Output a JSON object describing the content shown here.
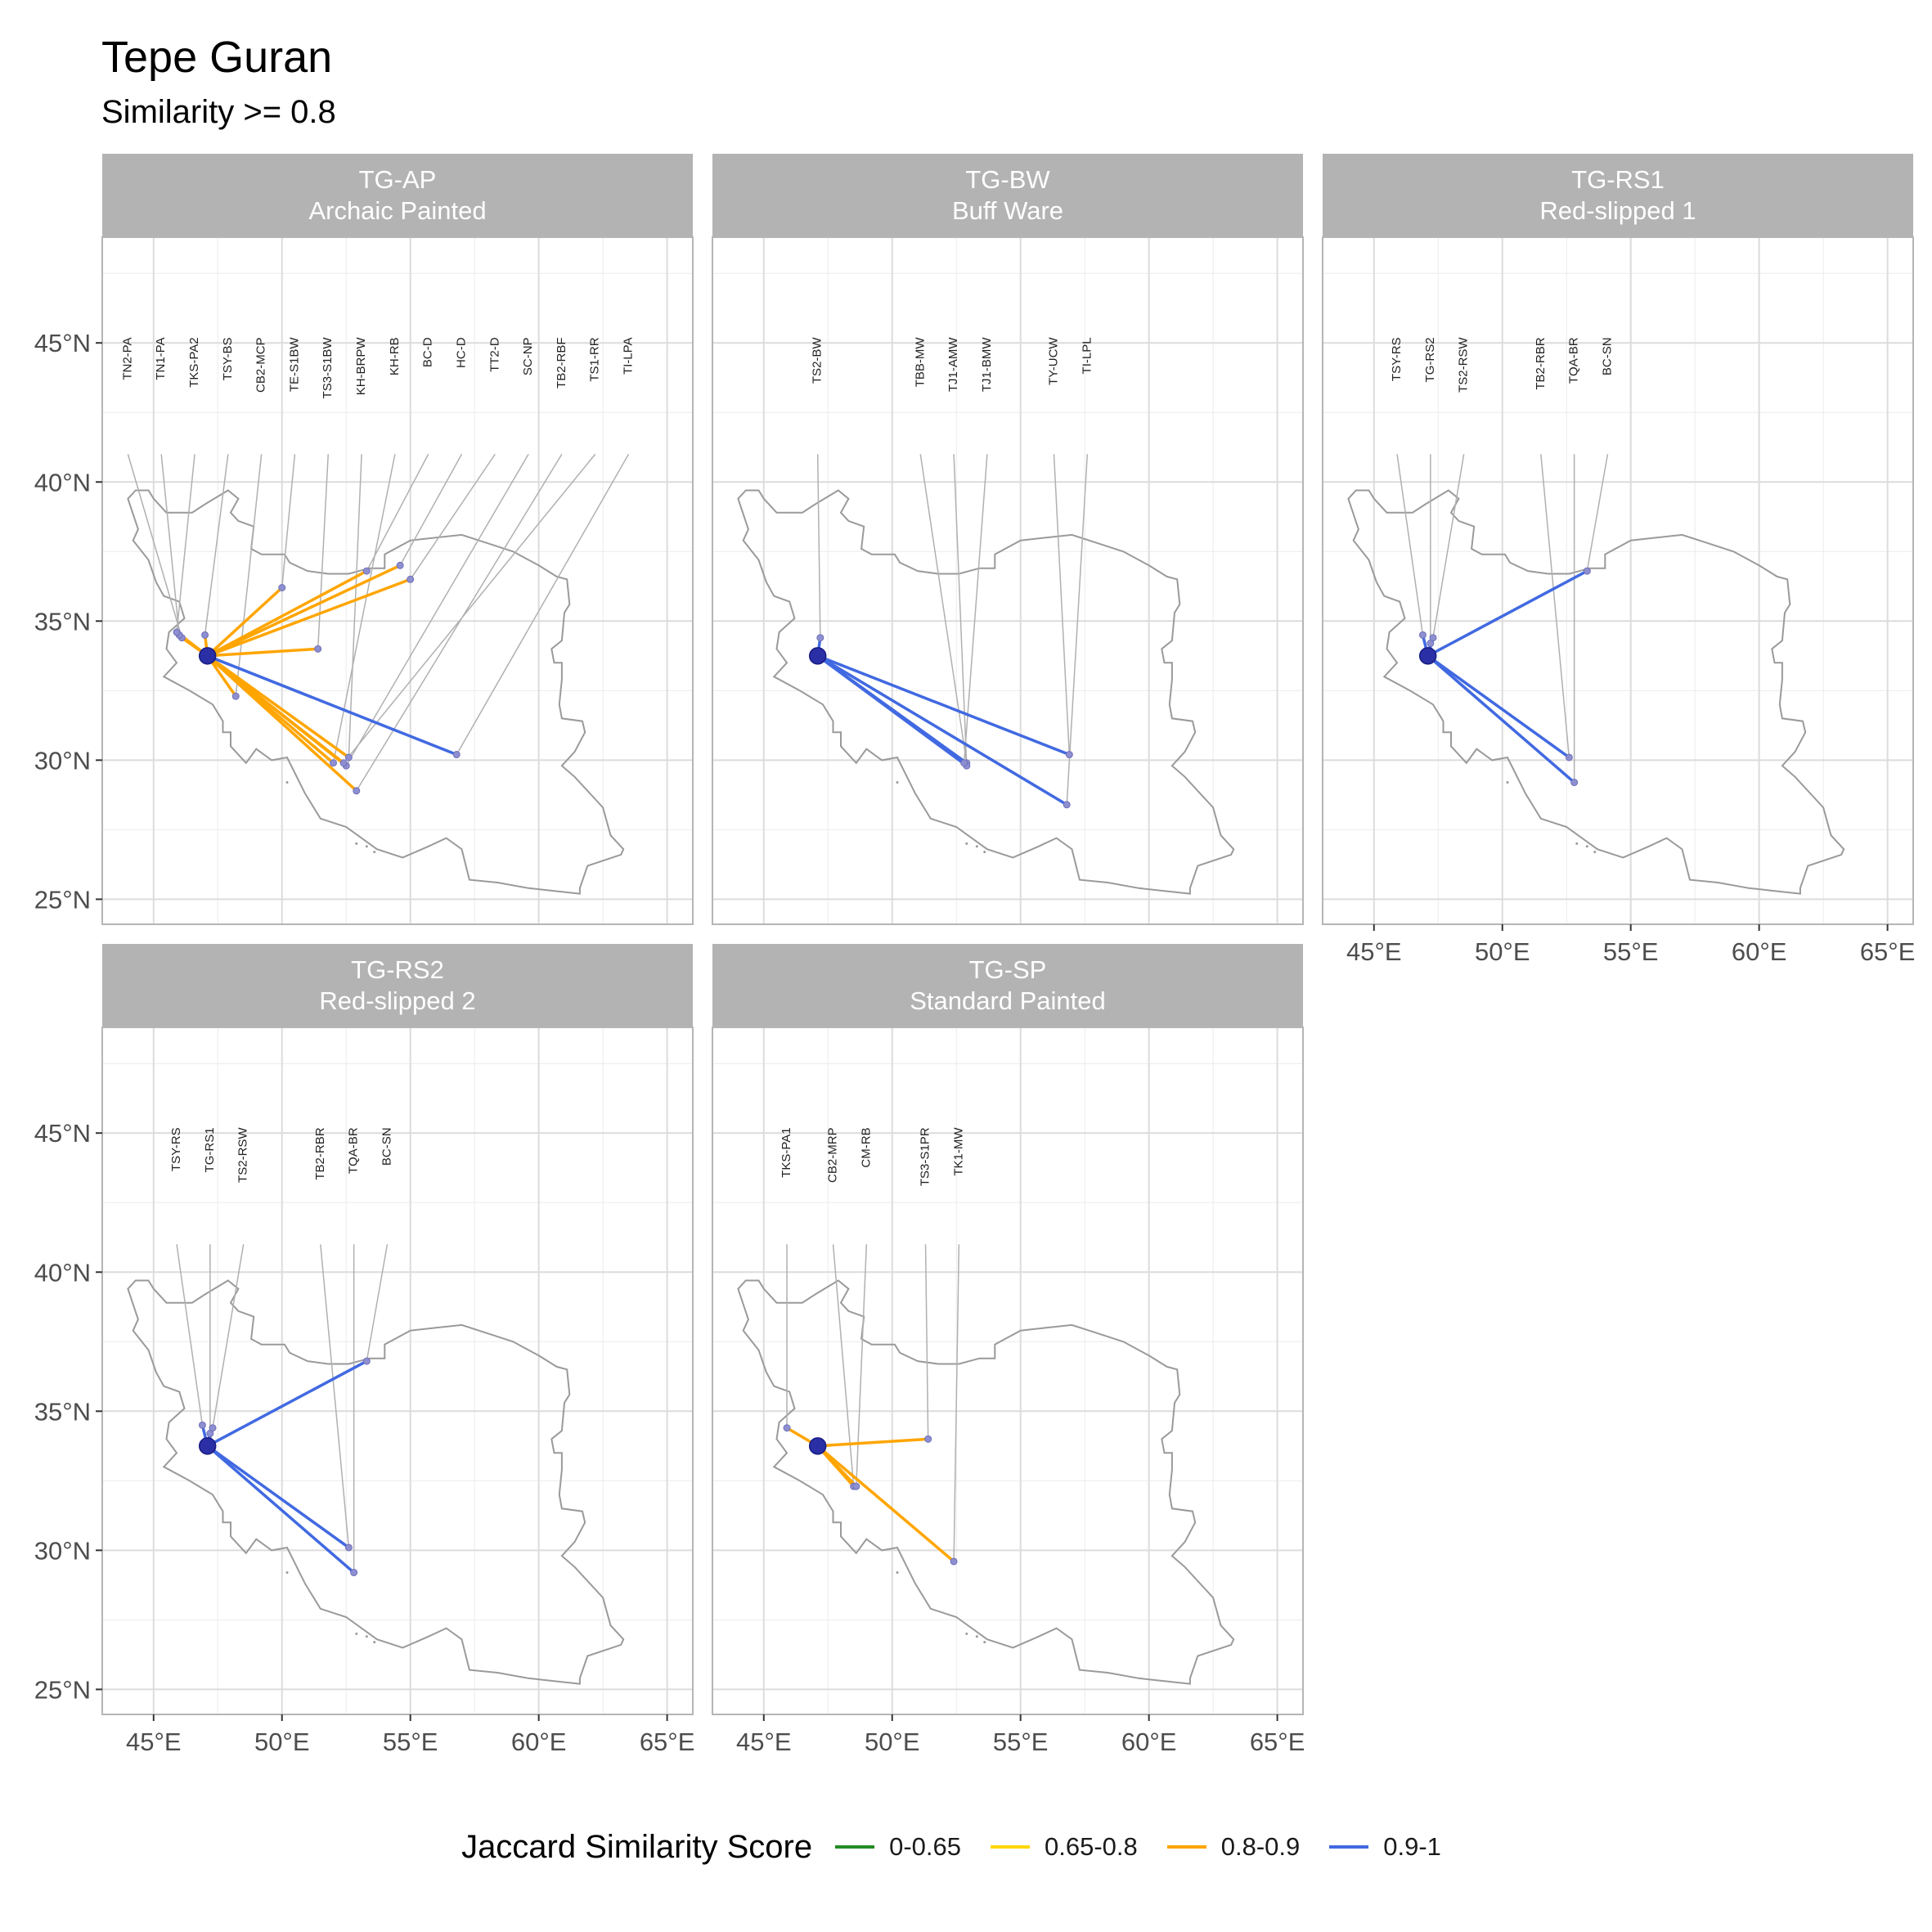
{
  "chart_data": {
    "type": "map",
    "title": "Tepe Guran",
    "subtitle": "Similarity >= 0.8",
    "x_ticks": [
      "45°E",
      "50°E",
      "55°E",
      "60°E",
      "65°E"
    ],
    "y_ticks": [
      "25°N",
      "30°N",
      "35°N",
      "40°N",
      "45°N"
    ],
    "xlim": [
      43.0,
      66.0
    ],
    "ylim": [
      24.1,
      48.8
    ],
    "origin": {
      "name": "Tepe Guran",
      "lon": 47.1,
      "lat": 33.75
    },
    "legend": {
      "title": "Jaccard Similarity Score",
      "placement": "bottom",
      "items": [
        {
          "label": "0-0.65",
          "color": "#228B22"
        },
        {
          "label": "0.65-0.8",
          "color": "#FFD700"
        },
        {
          "label": "0.8-0.9",
          "color": "#FFA500"
        },
        {
          "label": "0.9-1",
          "color": "#4169E1"
        }
      ]
    },
    "panels": [
      {
        "id": "TG-AP",
        "subtitle": "Archaic Painted",
        "sites": [
          {
            "label": "TN2-PA",
            "label_lon": 44.0,
            "lon": 46.1,
            "lat": 34.4,
            "score": "0.8-0.9"
          },
          {
            "label": "TN1-PA",
            "label_lon": 45.3,
            "lon": 46.0,
            "lat": 34.5,
            "score": "0.8-0.9"
          },
          {
            "label": "TKS-PA2",
            "label_lon": 46.6,
            "lon": 45.9,
            "lat": 34.6,
            "score": "0.8-0.9"
          },
          {
            "label": "TSY-BS",
            "label_lon": 47.9,
            "lon": 47.0,
            "lat": 34.5,
            "score": "0.8-0.9"
          },
          {
            "label": "CB2-MCP",
            "label_lon": 49.2,
            "lon": 48.2,
            "lat": 32.3,
            "score": "0.8-0.9"
          },
          {
            "label": "TE-S1BW",
            "label_lon": 50.5,
            "lon": 50.0,
            "lat": 36.2,
            "score": "0.8-0.9"
          },
          {
            "label": "TS3-S1BW",
            "label_lon": 51.8,
            "lon": 51.4,
            "lat": 34.0,
            "score": "0.8-0.9"
          },
          {
            "label": "KH-BRPW",
            "label_lon": 53.1,
            "lon": 52.6,
            "lat": 30.1,
            "score": "0.8-0.9"
          },
          {
            "label": "KH-RB",
            "label_lon": 54.4,
            "lon": 52.0,
            "lat": 29.9,
            "score": "0.8-0.9"
          },
          {
            "label": "BC-D",
            "label_lon": 55.7,
            "lon": 53.3,
            "lat": 36.8,
            "score": "0.8-0.9"
          },
          {
            "label": "HC-D",
            "label_lon": 57.0,
            "lon": 54.6,
            "lat": 37.0,
            "score": "0.8-0.9"
          },
          {
            "label": "TT2-D",
            "label_lon": 58.3,
            "lon": 55.0,
            "lat": 36.5,
            "score": "0.8-0.9"
          },
          {
            "label": "SC-NP",
            "label_lon": 59.6,
            "lon": 52.5,
            "lat": 29.8,
            "score": "0.8-0.9"
          },
          {
            "label": "TB2-RBF",
            "label_lon": 60.9,
            "lon": 52.9,
            "lat": 28.9,
            "score": "0.8-0.9"
          },
          {
            "label": "TS1-RR",
            "label_lon": 62.2,
            "lon": 52.4,
            "lat": 29.9,
            "score": "0.8-0.9"
          },
          {
            "label": "TI-LPA",
            "label_lon": 63.5,
            "lon": 56.8,
            "lat": 30.2,
            "score": "0.9-1"
          }
        ]
      },
      {
        "id": "TG-BW",
        "subtitle": "Buff Ware",
        "sites": [
          {
            "label": "TS2-BW",
            "label_lon": 47.1,
            "lon": 47.2,
            "lat": 34.4,
            "score": "0.9-1"
          },
          {
            "label": "TBB-MW",
            "label_lon": 51.1,
            "lon": 52.9,
            "lat": 29.9,
            "score": "0.9-1"
          },
          {
            "label": "TJ1-AMW",
            "label_lon": 52.4,
            "lon": 52.9,
            "lat": 29.8,
            "score": "0.9-1"
          },
          {
            "label": "TJ1-BMW",
            "label_lon": 53.7,
            "lon": 52.8,
            "lat": 29.9,
            "score": "0.9-1"
          },
          {
            "label": "TY-UCW",
            "label_lon": 56.3,
            "lon": 56.9,
            "lat": 30.2,
            "score": "0.9-1"
          },
          {
            "label": "TI-LPL",
            "label_lon": 57.6,
            "lon": 56.8,
            "lat": 28.4,
            "score": "0.9-1"
          }
        ]
      },
      {
        "id": "TG-RS1",
        "subtitle": "Red-slipped 1",
        "sites": [
          {
            "label": "TSY-RS",
            "label_lon": 45.9,
            "lon": 46.9,
            "lat": 34.5,
            "score": "0.9-1"
          },
          {
            "label": "TG-RS2",
            "label_lon": 47.2,
            "lon": 47.2,
            "lat": 34.2,
            "score": "0.9-1"
          },
          {
            "label": "TS2-RSW",
            "label_lon": 48.5,
            "lon": 47.3,
            "lat": 34.4,
            "score": "0.9-1"
          },
          {
            "label": "TB2-RBR",
            "label_lon": 51.5,
            "lon": 52.6,
            "lat": 30.1,
            "score": "0.9-1"
          },
          {
            "label": "TQA-BR",
            "label_lon": 52.8,
            "lon": 52.8,
            "lat": 29.2,
            "score": "0.9-1"
          },
          {
            "label": "BC-SN",
            "label_lon": 54.1,
            "lon": 53.3,
            "lat": 36.8,
            "score": "0.9-1"
          }
        ]
      },
      {
        "id": "TG-RS2",
        "subtitle": "Red-slipped 2",
        "sites": [
          {
            "label": "TSY-RS",
            "label_lon": 45.9,
            "lon": 46.9,
            "lat": 34.5,
            "score": "0.9-1"
          },
          {
            "label": "TG-RS1",
            "label_lon": 47.2,
            "lon": 47.2,
            "lat": 34.2,
            "score": "0.9-1"
          },
          {
            "label": "TS2-RSW",
            "label_lon": 48.5,
            "lon": 47.3,
            "lat": 34.4,
            "score": "0.9-1"
          },
          {
            "label": "TB2-RBR",
            "label_lon": 51.5,
            "lon": 52.6,
            "lat": 30.1,
            "score": "0.9-1"
          },
          {
            "label": "TQA-BR",
            "label_lon": 52.8,
            "lon": 52.8,
            "lat": 29.2,
            "score": "0.9-1"
          },
          {
            "label": "BC-SN",
            "label_lon": 54.1,
            "lon": 53.3,
            "lat": 36.8,
            "score": "0.9-1"
          }
        ]
      },
      {
        "id": "TG-SP",
        "subtitle": "Standard Painted",
        "sites": [
          {
            "label": "TKS-PA1",
            "label_lon": 45.9,
            "lon": 45.9,
            "lat": 34.4,
            "score": "0.8-0.9"
          },
          {
            "label": "CB2-MRP",
            "label_lon": 47.7,
            "lon": 48.5,
            "lat": 32.3,
            "score": "0.8-0.9"
          },
          {
            "label": "CM-RB",
            "label_lon": 49.0,
            "lon": 48.6,
            "lat": 32.3,
            "score": "0.8-0.9"
          },
          {
            "label": "TS3-S1PR",
            "label_lon": 51.3,
            "lon": 51.4,
            "lat": 34.0,
            "score": "0.8-0.9"
          },
          {
            "label": "TK1-MW",
            "label_lon": 52.6,
            "lon": 52.4,
            "lat": 29.6,
            "score": "0.8-0.9"
          }
        ]
      }
    ],
    "iran_outline": [
      [
        44.0,
        39.4
      ],
      [
        44.3,
        39.7
      ],
      [
        44.8,
        39.7
      ],
      [
        45.0,
        39.4
      ],
      [
        45.5,
        38.9
      ],
      [
        46.1,
        38.9
      ],
      [
        46.5,
        38.9
      ],
      [
        47.0,
        39.2
      ],
      [
        47.9,
        39.7
      ],
      [
        48.3,
        39.4
      ],
      [
        48.0,
        38.9
      ],
      [
        48.3,
        38.6
      ],
      [
        48.9,
        38.4
      ],
      [
        48.8,
        37.6
      ],
      [
        49.2,
        37.4
      ],
      [
        50.1,
        37.4
      ],
      [
        50.3,
        37.1
      ],
      [
        51.0,
        36.8
      ],
      [
        51.8,
        36.7
      ],
      [
        52.6,
        36.7
      ],
      [
        53.4,
        36.9
      ],
      [
        54.0,
        36.9
      ],
      [
        54.0,
        37.4
      ],
      [
        55.0,
        37.9
      ],
      [
        56.0,
        38.0
      ],
      [
        57.0,
        38.1
      ],
      [
        58.0,
        37.8
      ],
      [
        59.0,
        37.5
      ],
      [
        60.0,
        37.0
      ],
      [
        60.7,
        36.6
      ],
      [
        61.1,
        36.5
      ],
      [
        61.2,
        35.6
      ],
      [
        61.0,
        35.3
      ],
      [
        60.9,
        34.3
      ],
      [
        60.5,
        34.0
      ],
      [
        60.6,
        33.5
      ],
      [
        60.9,
        33.5
      ],
      [
        60.9,
        32.9
      ],
      [
        60.8,
        32.0
      ],
      [
        60.9,
        31.5
      ],
      [
        61.7,
        31.4
      ],
      [
        61.8,
        31.0
      ],
      [
        61.4,
        30.3
      ],
      [
        60.9,
        29.8
      ],
      [
        61.4,
        29.4
      ],
      [
        62.5,
        28.3
      ],
      [
        62.8,
        27.3
      ],
      [
        63.3,
        26.8
      ],
      [
        63.2,
        26.6
      ],
      [
        61.9,
        26.2
      ],
      [
        61.6,
        25.4
      ],
      [
        61.6,
        25.2
      ],
      [
        60.6,
        25.3
      ],
      [
        59.6,
        25.4
      ],
      [
        58.4,
        25.6
      ],
      [
        57.3,
        25.7
      ],
      [
        57.0,
        26.8
      ],
      [
        56.4,
        27.2
      ],
      [
        55.7,
        26.9
      ],
      [
        54.7,
        26.5
      ],
      [
        53.7,
        26.8
      ],
      [
        52.5,
        27.6
      ],
      [
        51.5,
        27.9
      ],
      [
        50.9,
        28.8
      ],
      [
        50.2,
        30.1
      ],
      [
        49.6,
        30.0
      ],
      [
        49.0,
        30.4
      ],
      [
        48.6,
        29.9
      ],
      [
        48.0,
        30.5
      ],
      [
        48.0,
        31.0
      ],
      [
        47.7,
        31.0
      ],
      [
        47.7,
        31.4
      ],
      [
        47.3,
        32.0
      ],
      [
        46.4,
        32.5
      ],
      [
        45.4,
        33.0
      ],
      [
        45.9,
        33.5
      ],
      [
        45.5,
        34.0
      ],
      [
        45.6,
        34.6
      ],
      [
        46.2,
        35.1
      ],
      [
        46.0,
        35.7
      ],
      [
        45.4,
        35.9
      ],
      [
        45.1,
        36.4
      ],
      [
        44.8,
        37.2
      ],
      [
        44.2,
        37.9
      ],
      [
        44.4,
        38.3
      ],
      [
        44.0,
        39.4
      ]
    ]
  }
}
